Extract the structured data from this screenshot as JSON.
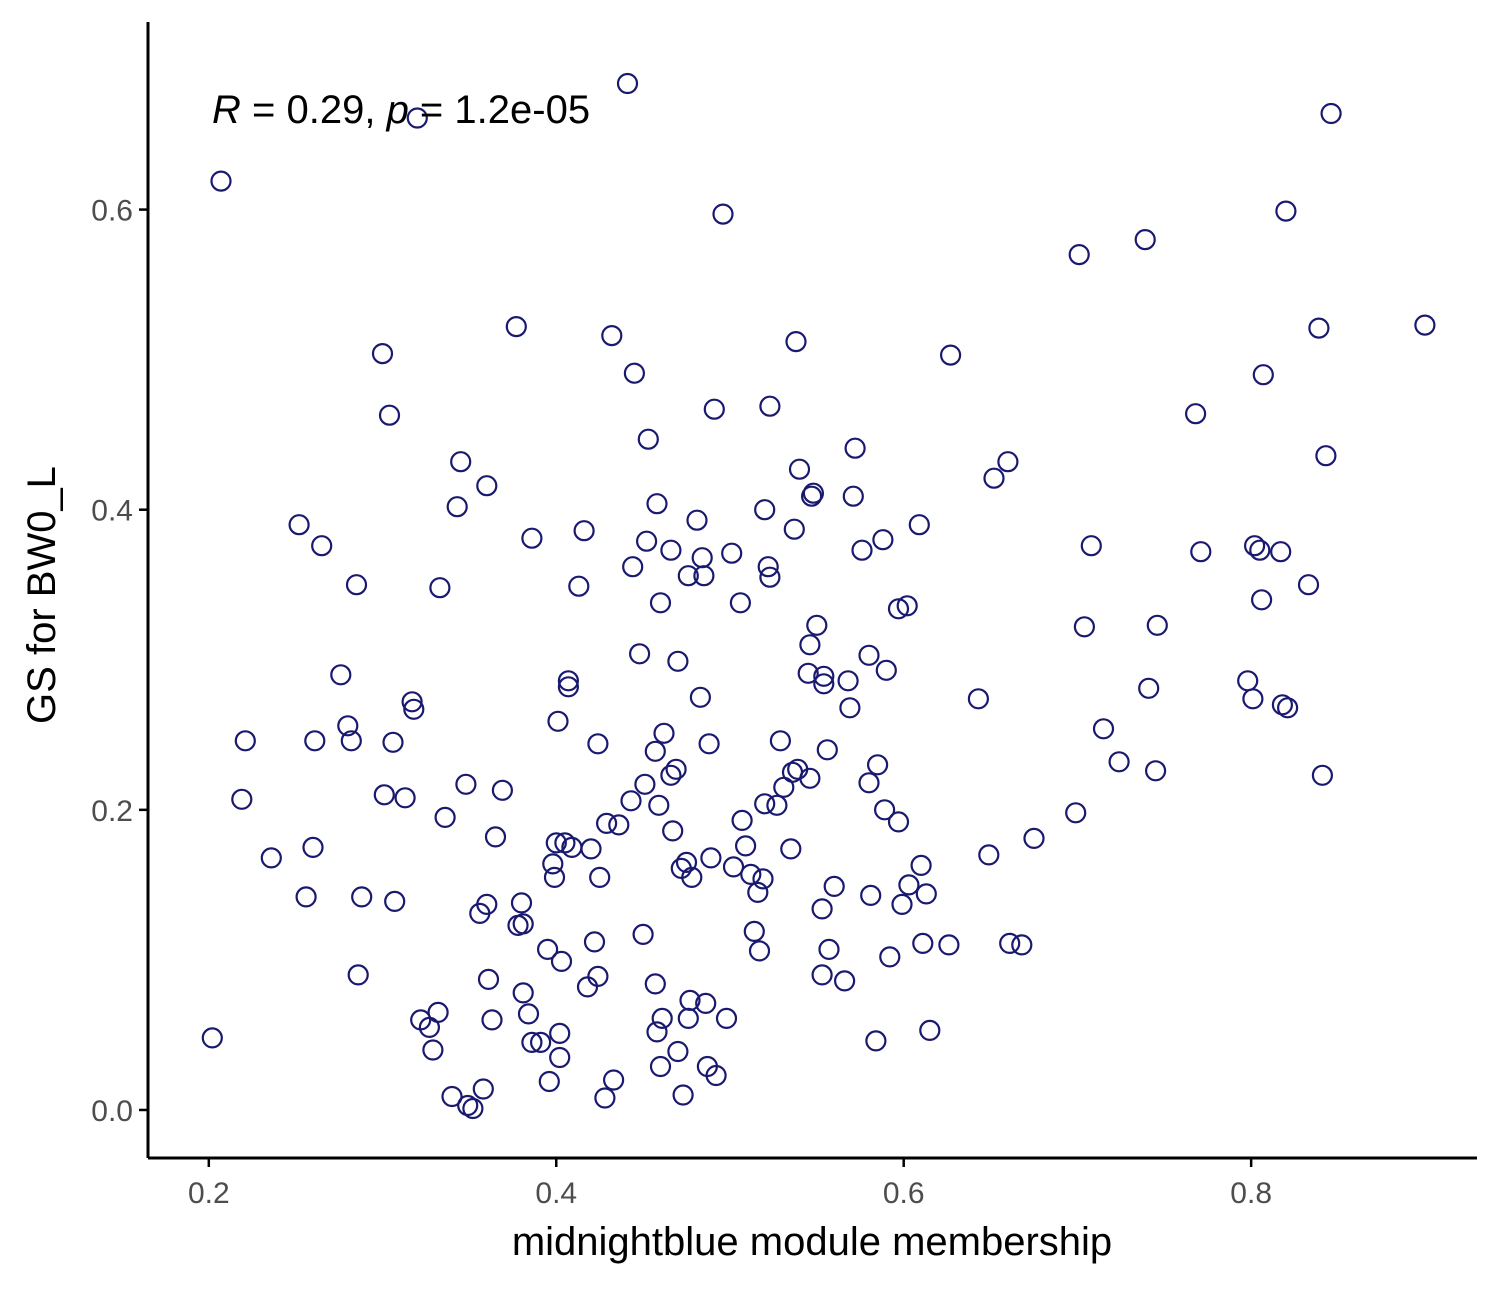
{
  "chart_data": {
    "type": "scatter",
    "xlabel": "midnightblue module membership",
    "ylabel": "GS for BW0_L",
    "annotation": {
      "r_symbol": "R",
      "r_value": " = 0.29, ",
      "p_symbol": "p",
      "p_value": " = 1.2e-05"
    },
    "xlim": [
      0.165,
      0.93
    ],
    "ylim": [
      -0.032,
      0.725
    ],
    "xticks": [
      0.2,
      0.4,
      0.6,
      0.8
    ],
    "xtick_labels": [
      "0.2",
      "0.4",
      "0.6",
      "0.8"
    ],
    "yticks": [
      0.0,
      0.2,
      0.4,
      0.6
    ],
    "ytick_labels": [
      "0.0",
      "0.2",
      "0.4",
      "0.6"
    ],
    "grid": false,
    "colors": {
      "point": "#191970",
      "axis": "#000000",
      "tick_label": "#4d4d4d"
    },
    "points": [
      [
        0.207,
        0.619
      ],
      [
        0.202,
        0.048
      ],
      [
        0.219,
        0.207
      ],
      [
        0.221,
        0.246
      ],
      [
        0.236,
        0.168
      ],
      [
        0.252,
        0.39
      ],
      [
        0.256,
        0.142
      ],
      [
        0.26,
        0.175
      ],
      [
        0.261,
        0.246
      ],
      [
        0.265,
        0.376
      ],
      [
        0.276,
        0.29
      ],
      [
        0.28,
        0.256
      ],
      [
        0.282,
        0.246
      ],
      [
        0.285,
        0.35
      ],
      [
        0.286,
        0.09
      ],
      [
        0.288,
        0.142
      ],
      [
        0.3,
        0.504
      ],
      [
        0.301,
        0.21
      ],
      [
        0.304,
        0.463
      ],
      [
        0.306,
        0.245
      ],
      [
        0.307,
        0.139
      ],
      [
        0.313,
        0.208
      ],
      [
        0.317,
        0.272
      ],
      [
        0.318,
        0.267
      ],
      [
        0.32,
        0.661
      ],
      [
        0.322,
        0.06
      ],
      [
        0.327,
        0.055
      ],
      [
        0.329,
        0.04
      ],
      [
        0.332,
        0.065
      ],
      [
        0.333,
        0.348
      ],
      [
        0.336,
        0.195
      ],
      [
        0.34,
        0.009
      ],
      [
        0.343,
        0.402
      ],
      [
        0.345,
        0.432
      ],
      [
        0.348,
        0.217
      ],
      [
        0.349,
        0.003
      ],
      [
        0.352,
        0.001
      ],
      [
        0.356,
        0.131
      ],
      [
        0.358,
        0.014
      ],
      [
        0.36,
        0.137
      ],
      [
        0.36,
        0.416
      ],
      [
        0.361,
        0.087
      ],
      [
        0.363,
        0.06
      ],
      [
        0.365,
        0.182
      ],
      [
        0.369,
        0.213
      ],
      [
        0.377,
        0.522
      ],
      [
        0.378,
        0.123
      ],
      [
        0.38,
        0.138
      ],
      [
        0.381,
        0.078
      ],
      [
        0.381,
        0.124
      ],
      [
        0.384,
        0.064
      ],
      [
        0.386,
        0.381
      ],
      [
        0.386,
        0.045
      ],
      [
        0.391,
        0.045
      ],
      [
        0.395,
        0.107
      ],
      [
        0.396,
        0.019
      ],
      [
        0.398,
        0.164
      ],
      [
        0.399,
        0.155
      ],
      [
        0.4,
        0.178
      ],
      [
        0.401,
        0.259
      ],
      [
        0.402,
        0.051
      ],
      [
        0.402,
        0.035
      ],
      [
        0.403,
        0.099
      ],
      [
        0.405,
        0.178
      ],
      [
        0.407,
        0.286
      ],
      [
        0.407,
        0.282
      ],
      [
        0.409,
        0.175
      ],
      [
        0.413,
        0.349
      ],
      [
        0.416,
        0.386
      ],
      [
        0.418,
        0.082
      ],
      [
        0.42,
        0.174
      ],
      [
        0.422,
        0.112
      ],
      [
        0.424,
        0.089
      ],
      [
        0.424,
        0.244
      ],
      [
        0.425,
        0.155
      ],
      [
        0.428,
        0.008
      ],
      [
        0.429,
        0.191
      ],
      [
        0.432,
        0.516
      ],
      [
        0.433,
        0.02
      ],
      [
        0.436,
        0.19
      ],
      [
        0.441,
        0.684
      ],
      [
        0.443,
        0.206
      ],
      [
        0.444,
        0.362
      ],
      [
        0.445,
        0.491
      ],
      [
        0.448,
        0.304
      ],
      [
        0.45,
        0.117
      ],
      [
        0.451,
        0.217
      ],
      [
        0.452,
        0.379
      ],
      [
        0.453,
        0.447
      ],
      [
        0.457,
        0.084
      ],
      [
        0.457,
        0.239
      ],
      [
        0.458,
        0.404
      ],
      [
        0.458,
        0.052
      ],
      [
        0.459,
        0.203
      ],
      [
        0.46,
        0.029
      ],
      [
        0.46,
        0.338
      ],
      [
        0.461,
        0.061
      ],
      [
        0.462,
        0.251
      ],
      [
        0.466,
        0.373
      ],
      [
        0.466,
        0.223
      ],
      [
        0.467,
        0.186
      ],
      [
        0.469,
        0.227
      ],
      [
        0.47,
        0.039
      ],
      [
        0.47,
        0.299
      ],
      [
        0.472,
        0.161
      ],
      [
        0.473,
        0.01
      ],
      [
        0.475,
        0.165
      ],
      [
        0.476,
        0.356
      ],
      [
        0.476,
        0.061
      ],
      [
        0.477,
        0.073
      ],
      [
        0.478,
        0.155
      ],
      [
        0.481,
        0.393
      ],
      [
        0.483,
        0.275
      ],
      [
        0.484,
        0.368
      ],
      [
        0.485,
        0.356
      ],
      [
        0.486,
        0.071
      ],
      [
        0.487,
        0.029
      ],
      [
        0.488,
        0.244
      ],
      [
        0.489,
        0.168
      ],
      [
        0.491,
        0.467
      ],
      [
        0.492,
        0.023
      ],
      [
        0.496,
        0.597
      ],
      [
        0.498,
        0.061
      ],
      [
        0.501,
        0.371
      ],
      [
        0.502,
        0.162
      ],
      [
        0.506,
        0.338
      ],
      [
        0.507,
        0.193
      ],
      [
        0.509,
        0.176
      ],
      [
        0.512,
        0.157
      ],
      [
        0.514,
        0.119
      ],
      [
        0.516,
        0.145
      ],
      [
        0.517,
        0.106
      ],
      [
        0.519,
        0.154
      ],
      [
        0.52,
        0.204
      ],
      [
        0.52,
        0.4
      ],
      [
        0.522,
        0.362
      ],
      [
        0.523,
        0.355
      ],
      [
        0.523,
        0.469
      ],
      [
        0.527,
        0.203
      ],
      [
        0.529,
        0.246
      ],
      [
        0.531,
        0.215
      ],
      [
        0.535,
        0.174
      ],
      [
        0.536,
        0.225
      ],
      [
        0.537,
        0.387
      ],
      [
        0.538,
        0.512
      ],
      [
        0.539,
        0.227
      ],
      [
        0.54,
        0.427
      ],
      [
        0.545,
        0.291
      ],
      [
        0.546,
        0.221
      ],
      [
        0.546,
        0.31
      ],
      [
        0.547,
        0.409
      ],
      [
        0.548,
        0.411
      ],
      [
        0.55,
        0.323
      ],
      [
        0.553,
        0.134
      ],
      [
        0.553,
        0.09
      ],
      [
        0.554,
        0.289
      ],
      [
        0.554,
        0.284
      ],
      [
        0.556,
        0.24
      ],
      [
        0.557,
        0.107
      ],
      [
        0.56,
        0.149
      ],
      [
        0.566,
        0.086
      ],
      [
        0.568,
        0.286
      ],
      [
        0.569,
        0.268
      ],
      [
        0.571,
        0.409
      ],
      [
        0.572,
        0.441
      ],
      [
        0.576,
        0.373
      ],
      [
        0.58,
        0.303
      ],
      [
        0.58,
        0.218
      ],
      [
        0.581,
        0.143
      ],
      [
        0.584,
        0.046
      ],
      [
        0.585,
        0.23
      ],
      [
        0.588,
        0.38
      ],
      [
        0.589,
        0.2
      ],
      [
        0.59,
        0.293
      ],
      [
        0.592,
        0.102
      ],
      [
        0.597,
        0.334
      ],
      [
        0.597,
        0.192
      ],
      [
        0.599,
        0.137
      ],
      [
        0.602,
        0.336
      ],
      [
        0.603,
        0.15
      ],
      [
        0.609,
        0.39
      ],
      [
        0.61,
        0.163
      ],
      [
        0.611,
        0.111
      ],
      [
        0.613,
        0.144
      ],
      [
        0.615,
        0.053
      ],
      [
        0.626,
        0.11
      ],
      [
        0.627,
        0.503
      ],
      [
        0.643,
        0.274
      ],
      [
        0.649,
        0.17
      ],
      [
        0.652,
        0.421
      ],
      [
        0.66,
        0.432
      ],
      [
        0.661,
        0.111
      ],
      [
        0.668,
        0.11
      ],
      [
        0.675,
        0.181
      ],
      [
        0.699,
        0.198
      ],
      [
        0.701,
        0.57
      ],
      [
        0.704,
        0.322
      ],
      [
        0.708,
        0.376
      ],
      [
        0.715,
        0.254
      ],
      [
        0.724,
        0.232
      ],
      [
        0.739,
        0.58
      ],
      [
        0.741,
        0.281
      ],
      [
        0.745,
        0.226
      ],
      [
        0.746,
        0.323
      ],
      [
        0.768,
        0.464
      ],
      [
        0.771,
        0.372
      ],
      [
        0.798,
        0.286
      ],
      [
        0.801,
        0.274
      ],
      [
        0.802,
        0.376
      ],
      [
        0.805,
        0.373
      ],
      [
        0.806,
        0.34
      ],
      [
        0.807,
        0.49
      ],
      [
        0.817,
        0.372
      ],
      [
        0.818,
        0.27
      ],
      [
        0.82,
        0.599
      ],
      [
        0.821,
        0.268
      ],
      [
        0.833,
        0.35
      ],
      [
        0.839,
        0.521
      ],
      [
        0.841,
        0.223
      ],
      [
        0.843,
        0.436
      ],
      [
        0.846,
        0.664
      ],
      [
        0.9,
        0.523
      ]
    ]
  }
}
